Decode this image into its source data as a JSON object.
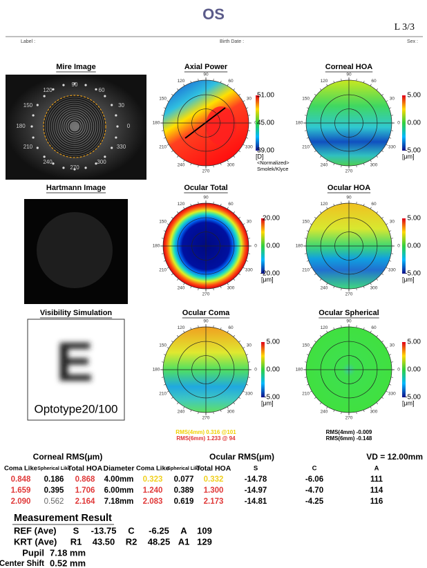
{
  "header": {
    "eye": "OS",
    "page": "L  3/3",
    "label": "Label :",
    "birth_date": "Birth Date :",
    "sex": "Sex :"
  },
  "panels": {
    "mire": "Mire Image",
    "axial": "Axial Power",
    "corneal_hoa": "Corneal HOA",
    "hartmann": "Hartmann Image",
    "ocular_total": "Ocular Total",
    "ocular_hoa": "Ocular HOA",
    "visibility": "Visibility Simulation",
    "ocular_coma": "Ocular Coma",
    "ocular_spherical": "Ocular Spherical"
  },
  "map_angles": [
    "90",
    "60",
    "30",
    "0",
    "330",
    "300",
    "270",
    "240",
    "210",
    "180",
    "150",
    "120"
  ],
  "scales": {
    "axial": [
      "51.00",
      "45.00",
      "39.00",
      "[D]",
      "<Normalized>",
      "Smolek/Klyce"
    ],
    "hoa": [
      "5.00",
      "0.00",
      "-5.00",
      "[μm]"
    ],
    "total": [
      "20.00",
      "0.00",
      "-20.00",
      "[μm]"
    ]
  },
  "optotype": "Optotype20/100",
  "coma_rms": [
    "RMS(4mm)  0.316 @101",
    "RMS(6mm)  1.233 @ 94"
  ],
  "spherical_rms": [
    "RMS(4mm) -0.009",
    "RMS(6mm) -0.148"
  ],
  "table": {
    "groups": [
      "Corneal RMS(μm)",
      "Ocular RMS(μm)",
      "VD = 12.00mm"
    ],
    "columns": [
      "Coma Like",
      "Spherical Like",
      "Total HOA",
      "Diameter",
      "Coma Like",
      "Spherical Like",
      "Total HOA",
      "S",
      "C",
      "A"
    ],
    "rows": [
      [
        "0.848",
        "0.186",
        "0.868",
        "4.00mm",
        "0.323",
        "0.077",
        "0.332",
        "-14.78",
        "-6.06",
        "111"
      ],
      [
        "1.659",
        "0.395",
        "1.706",
        "6.00mm",
        "1.240",
        "0.389",
        "1.300",
        "-14.97",
        "-4.70",
        "114"
      ],
      [
        "2.090",
        "0.562",
        "2.164",
        "7.18mm",
        "2.083",
        "0.619",
        "2.173",
        "-14.81",
        "-4.25",
        "116"
      ]
    ]
  },
  "measurement": {
    "title": "Measurement Result",
    "rows": [
      [
        "REF (Ave)",
        "S",
        "-13.75",
        "C",
        "-6.25",
        "A",
        "109"
      ],
      [
        "KRT (Ave)",
        "R1",
        "43.50",
        "R2",
        "48.25",
        "A1",
        "129"
      ]
    ],
    "pupil": [
      "Pupil",
      "7.18 mm"
    ],
    "center_shift": [
      "Center Shift",
      "0.52 mm"
    ]
  }
}
